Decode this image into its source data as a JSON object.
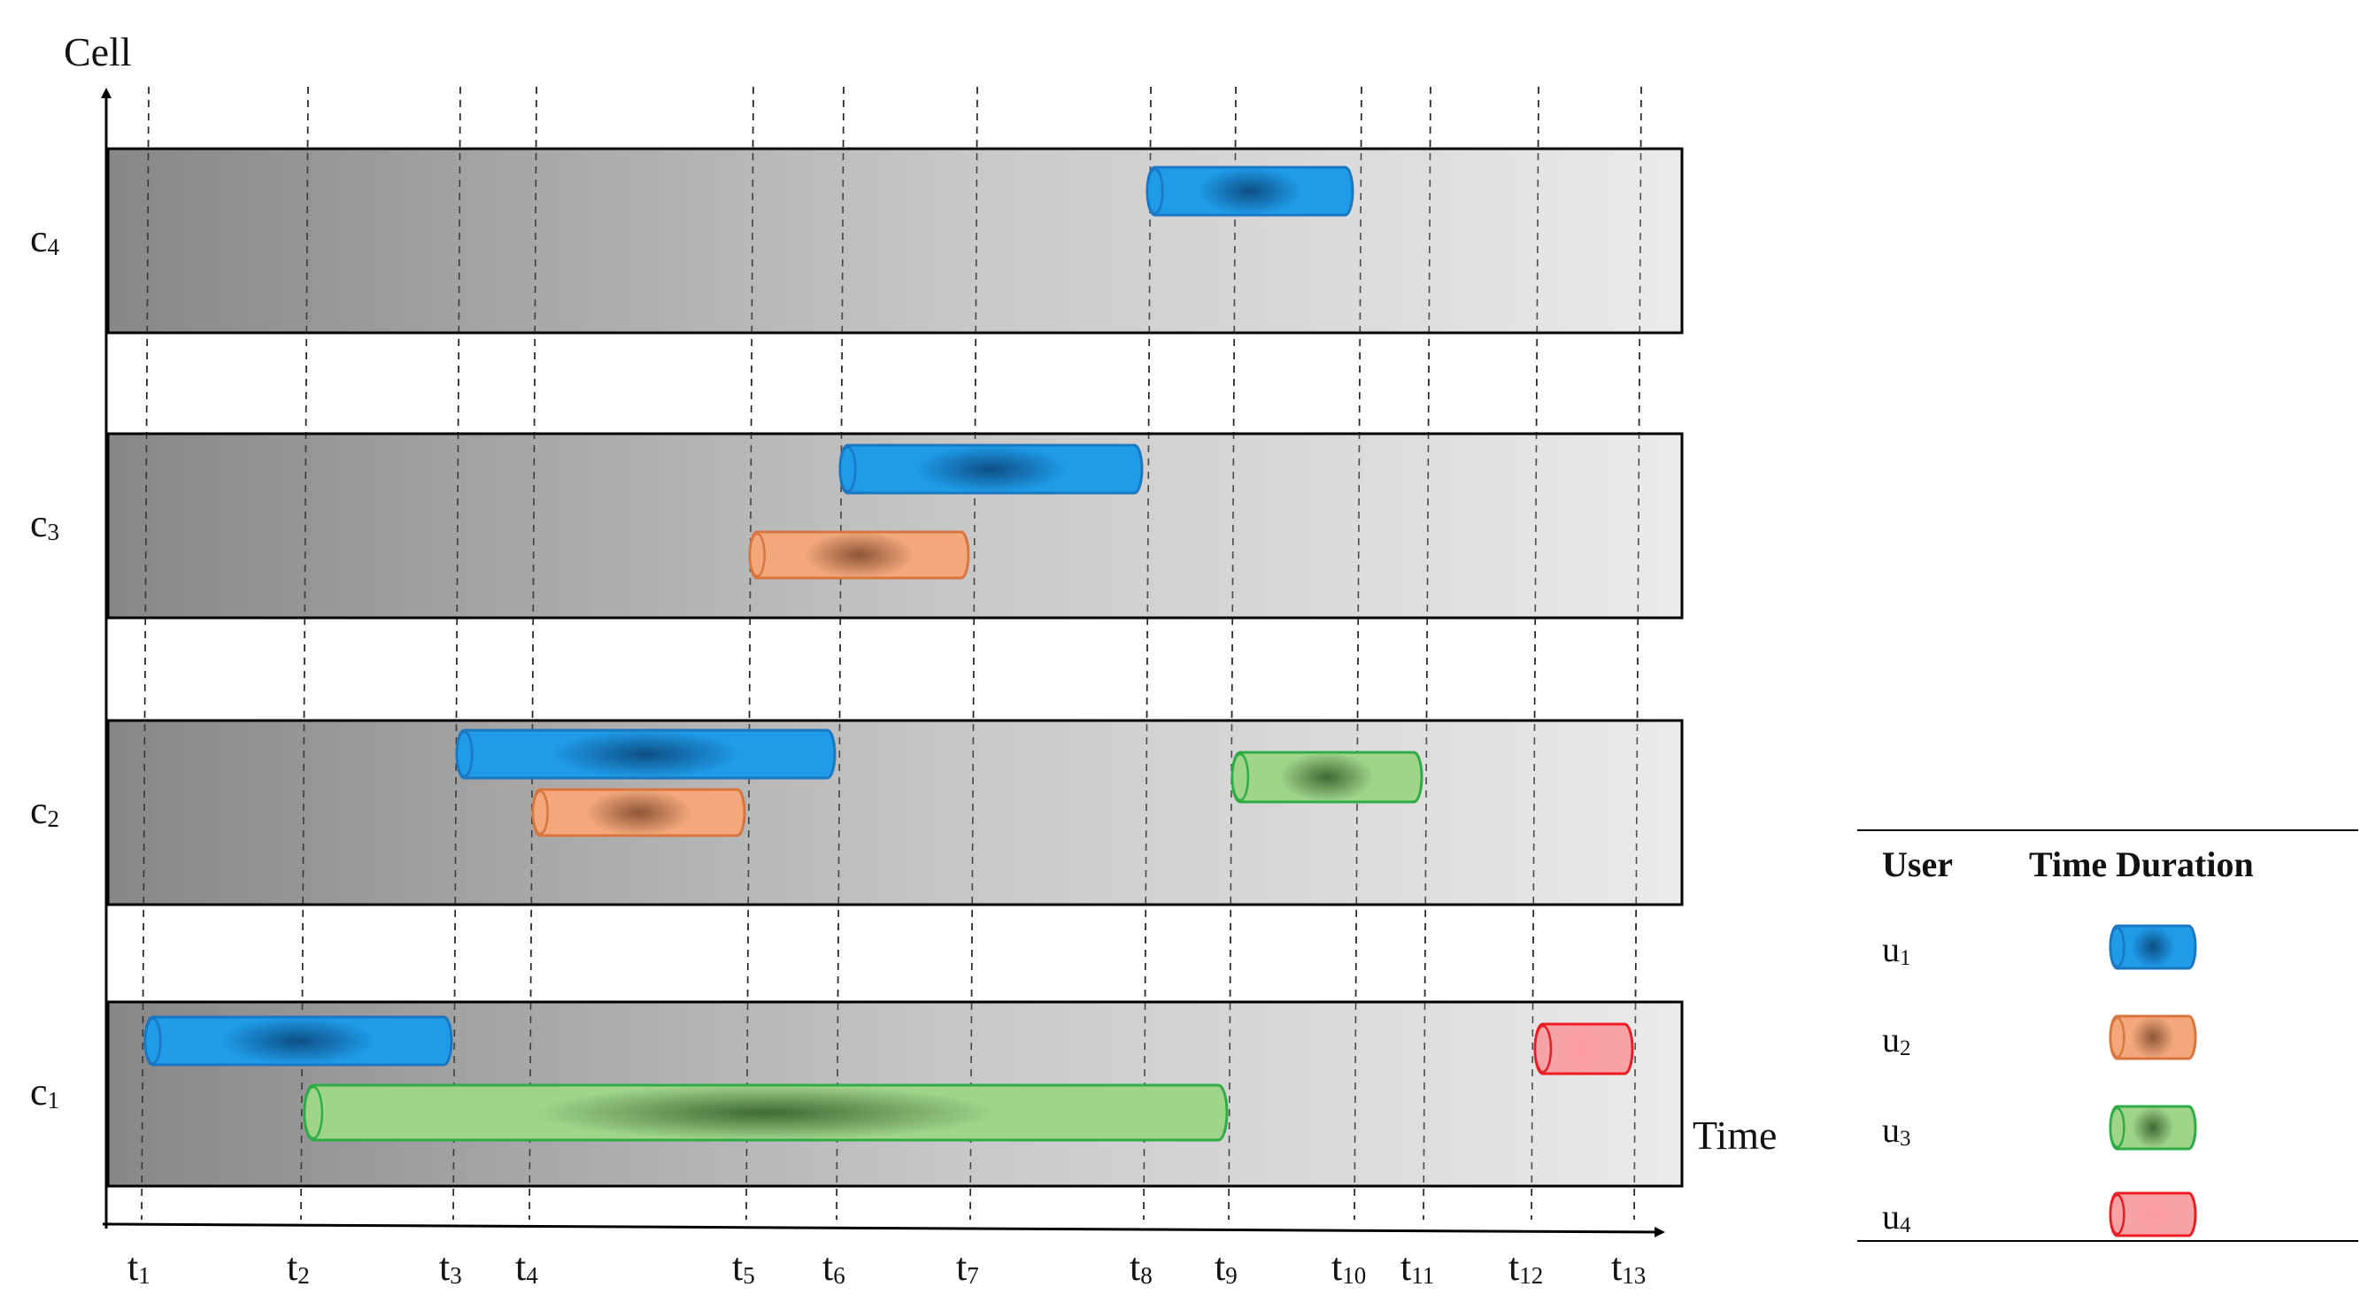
{
  "axes": {
    "y_label": "Cell",
    "x_label": "Time"
  },
  "times": [
    {
      "main": "t",
      "sub": "1"
    },
    {
      "main": "t",
      "sub": "2"
    },
    {
      "main": "t",
      "sub": "3"
    },
    {
      "main": "t",
      "sub": "4"
    },
    {
      "main": "t",
      "sub": "5"
    },
    {
      "main": "t",
      "sub": "6"
    },
    {
      "main": "t",
      "sub": "7"
    },
    {
      "main": "t",
      "sub": "8"
    },
    {
      "main": "t",
      "sub": "9"
    },
    {
      "main": "t",
      "sub": "10"
    },
    {
      "main": "t",
      "sub": "11"
    },
    {
      "main": "t",
      "sub": "12"
    },
    {
      "main": "t",
      "sub": "13"
    }
  ],
  "cells": [
    {
      "main": "c",
      "sub": "4"
    },
    {
      "main": "c",
      "sub": "3"
    },
    {
      "main": "c",
      "sub": "2"
    },
    {
      "main": "c",
      "sub": "1"
    }
  ],
  "users": [
    {
      "id": "u1",
      "main": "u",
      "sub": "1",
      "color": "#1f9be8",
      "dark": "#0d4f86",
      "edge": "#1a78c2"
    },
    {
      "id": "u2",
      "main": "u",
      "sub": "2",
      "color": "#f3a77a",
      "dark": "#8d5537",
      "edge": "#d8763f"
    },
    {
      "id": "u3",
      "main": "u",
      "sub": "3",
      "color": "#9fd48a",
      "dark": "#3f6a34",
      "edge": "#2eac45"
    },
    {
      "id": "u4",
      "main": "u",
      "sub": "4",
      "color": "#f7a3a6",
      "dark": "#ff9aa0",
      "edge": "#ea1c24"
    }
  ],
  "intervals": [
    {
      "cell": "4",
      "user": "u1",
      "start": "8",
      "end": "10"
    },
    {
      "cell": "3",
      "user": "u1",
      "start": "6",
      "end": "8"
    },
    {
      "cell": "3",
      "user": "u2",
      "start": "5",
      "end": "7"
    },
    {
      "cell": "2",
      "user": "u1",
      "start": "3",
      "end": "6"
    },
    {
      "cell": "2",
      "user": "u2",
      "start": "4",
      "end": "5"
    },
    {
      "cell": "2",
      "user": "u3",
      "start": "9",
      "end": "11"
    },
    {
      "cell": "1",
      "user": "u1",
      "start": "1",
      "end": "3"
    },
    {
      "cell": "1",
      "user": "u3",
      "start": "2",
      "end": "9"
    },
    {
      "cell": "1",
      "user": "u4",
      "start": "12",
      "end": "13"
    }
  ],
  "legend": {
    "col_user": "User",
    "col_duration": "Time Duration"
  }
}
